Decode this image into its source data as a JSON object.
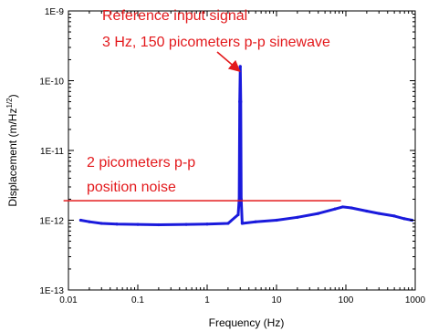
{
  "chart_data": {
    "type": "line",
    "x_scale": "log",
    "y_scale": "log",
    "xlabel": "Frequency (Hz)",
    "ylabel": "Displacement (m/Hz",
    "ylabel_sup": "1/2",
    "ylabel_close": ")",
    "xlim": [
      0.01,
      1000
    ],
    "ylim": [
      1e-13,
      1e-09
    ],
    "x_ticks": [
      0.01,
      0.1,
      1,
      10,
      100,
      1000
    ],
    "x_tick_labels": [
      "0.01",
      "0.1",
      "1",
      "10",
      "100",
      "1000"
    ],
    "y_ticks": [
      1e-13,
      1e-12,
      1e-11,
      1e-10,
      1e-09
    ],
    "y_tick_labels": [
      "1E-13",
      "1E-12",
      "1E-11",
      "1E-10",
      "1E-9"
    ],
    "grid": false,
    "series_color": "#1a1adc",
    "series": [
      {
        "x": [
          0.015,
          0.02,
          0.03,
          0.05,
          0.1,
          0.2,
          0.5,
          1,
          2,
          2.8,
          2.9,
          2.95,
          3.0,
          3.05,
          3.1,
          3.2,
          5,
          10,
          20,
          40,
          70,
          90,
          120,
          200,
          300,
          500,
          700,
          900
        ],
        "y": [
          1e-12,
          9.5e-13,
          9e-13,
          8.8e-13,
          8.7e-13,
          8.6e-13,
          8.7e-13,
          8.8e-13,
          9e-13,
          1.2e-12,
          2e-12,
          5e-11,
          1.6e-10,
          5e-11,
          2e-12,
          9e-13,
          9.5e-13,
          1e-12,
          1.1e-12,
          1.25e-12,
          1.45e-12,
          1.55e-12,
          1.5e-12,
          1.35e-12,
          1.25e-12,
          1.15e-12,
          1.05e-12,
          1e-12
        ]
      }
    ],
    "reference_line": {
      "y": 1.9e-12,
      "x_start": 0.0085,
      "x_end": 85,
      "color": "#e3191c"
    },
    "annotations": {
      "signal_line1": "Reference input signal",
      "signal_line2": "3 Hz, 150 picometers p-p sinewave",
      "noise_line1": "2 picometers p-p",
      "noise_line2": "position noise",
      "color": "#e3191c",
      "arrow_target": {
        "x": 3,
        "y": 1.6e-10
      }
    }
  }
}
